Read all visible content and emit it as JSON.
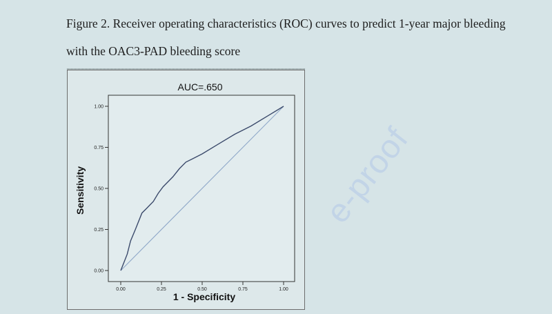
{
  "caption": {
    "line1": "Figure 2. Receiver operating characteristics (ROC) curves to predict 1-year major bleeding",
    "line2": "with the OAC3-PAD bleeding score"
  },
  "watermark": "e-proof",
  "chart_data": {
    "type": "line",
    "title": "AUC=.650",
    "xlabel": "1 - Specificity",
    "ylabel": "Sensitivity",
    "xlim": [
      0,
      1
    ],
    "ylim": [
      0,
      1
    ],
    "xticks": [
      "0.00",
      "0.25",
      "0.50",
      "0.75",
      "1.00"
    ],
    "yticks": [
      "0.00",
      "0.25",
      "0.50",
      "0.75",
      "1.00"
    ],
    "grid": false,
    "series": [
      {
        "name": "",
        "color": "#3b4a6b",
        "x": [
          0,
          0.02,
          0.04,
          0.06,
          0.09,
          0.13,
          0.16,
          0.18,
          0.2,
          0.23,
          0.26,
          0.29,
          0.32,
          0.36,
          0.4,
          0.44,
          0.5,
          0.6,
          0.7,
          0.8,
          0.9,
          1.0
        ],
        "y": [
          0,
          0.05,
          0.1,
          0.18,
          0.25,
          0.35,
          0.38,
          0.4,
          0.42,
          0.47,
          0.51,
          0.54,
          0.57,
          0.62,
          0.66,
          0.68,
          0.71,
          0.77,
          0.83,
          0.88,
          0.94,
          1.0
        ]
      },
      {
        "name": "",
        "color": "#8ea7c8",
        "x": [
          0,
          1
        ],
        "y": [
          0,
          1
        ]
      }
    ]
  }
}
